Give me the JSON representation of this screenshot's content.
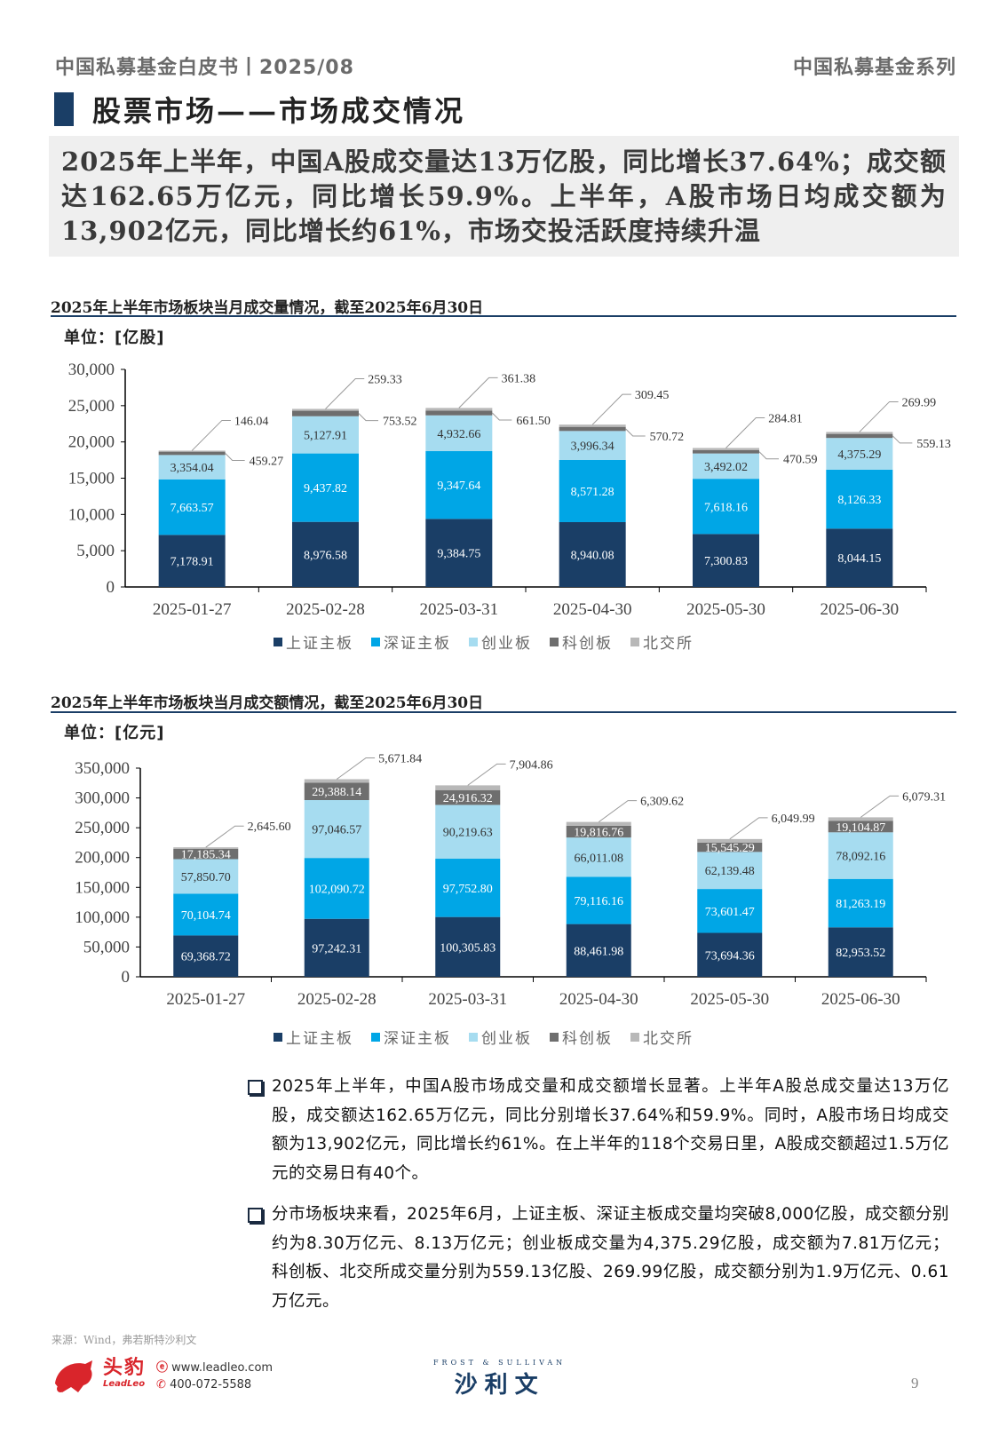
{
  "header": {
    "left": "中国私募基金白皮书丨2025/08",
    "right": "中国私募基金系列"
  },
  "page_title": "股票市场——市场成交情况",
  "summary": "2025年上半年，中国A股成交量达13万亿股，同比增长37.64%；成交额达162.65万亿元，同比增长59.9%。上半年，A股市场日均成交额为13,902亿元，同比增长约61%，市场交投活跃度持续升温",
  "colors": {
    "上证主板": "#1a3e66",
    "深证主板": "#00a6e6",
    "创业板": "#a6dcf0",
    "科创板": "#6e6e6e",
    "北交所": "#b8b8b8",
    "accent": "#1a3e66"
  },
  "chart_data": [
    {
      "type": "bar",
      "stacked": true,
      "title": "2025年上半年市场板块当月成交量情况，截至2025年6月30日",
      "unit": "单位：[亿股]",
      "categories": [
        "2025-01-27",
        "2025-02-28",
        "2025-03-31",
        "2025-04-30",
        "2025-05-30",
        "2025-06-30"
      ],
      "series": [
        {
          "name": "上证主板",
          "values": [
            7178.91,
            8976.58,
            9384.75,
            8940.08,
            7300.83,
            8044.15
          ],
          "labels": [
            "7,178.91",
            "8,976.58",
            "9,384.75",
            "8,940.08",
            "7,300.83",
            "8,044.15"
          ]
        },
        {
          "name": "深证主板",
          "values": [
            7663.57,
            9437.82,
            9347.64,
            8571.28,
            7618.16,
            8126.33
          ],
          "labels": [
            "7,663.57",
            "9,437.82",
            "9,347.64",
            "8,571.28",
            "7,618.16",
            "8,126.33"
          ]
        },
        {
          "name": "创业板",
          "values": [
            3354.04,
            5127.91,
            4932.66,
            3996.34,
            3492.02,
            4375.29
          ],
          "labels": [
            "3,354.04",
            "5,127.91",
            "4,932.66",
            "3,996.34",
            "3,492.02",
            "4,375.29"
          ]
        },
        {
          "name": "科创板",
          "values": [
            459.27,
            753.52,
            661.5,
            570.72,
            470.59,
            559.13
          ],
          "labels": [
            "459.27",
            "753.52",
            "661.50",
            "570.72",
            "470.59",
            "559.13"
          ]
        },
        {
          "name": "北交所",
          "values": [
            146.04,
            259.33,
            361.38,
            309.45,
            284.81,
            269.99
          ],
          "labels": [
            "146.04",
            "259.33",
            "361.38",
            "309.45",
            "284.81",
            "269.99"
          ]
        }
      ],
      "ylim": [
        0,
        30000
      ],
      "yticks": [
        "0",
        "5,000",
        "10,000",
        "15,000",
        "20,000",
        "25,000",
        "30,000"
      ],
      "grid": false,
      "legend": "bottom"
    },
    {
      "type": "bar",
      "stacked": true,
      "title": "2025年上半年市场板块当月成交额情况，截至2025年6月30日",
      "unit": "单位：[亿元]",
      "categories": [
        "2025-01-27",
        "2025-02-28",
        "2025-03-31",
        "2025-04-30",
        "2025-05-30",
        "2025-06-30"
      ],
      "series": [
        {
          "name": "上证主板",
          "values": [
            69368.72,
            97242.31,
            100305.83,
            88461.98,
            73694.36,
            82953.52
          ],
          "labels": [
            "69,368.72",
            "97,242.31",
            "100,305.83",
            "88,461.98",
            "73,694.36",
            "82,953.52"
          ]
        },
        {
          "name": "深证主板",
          "values": [
            70104.74,
            102090.72,
            97752.8,
            79116.16,
            73601.47,
            81263.19
          ],
          "labels": [
            "70,104.74",
            "102,090.72",
            "97,752.80",
            "79,116.16",
            "73,601.47",
            "81,263.19"
          ]
        },
        {
          "name": "创业板",
          "values": [
            57850.7,
            97046.57,
            90219.63,
            66011.08,
            62139.48,
            78092.16
          ],
          "labels": [
            "57,850.70",
            "97,046.57",
            "90,219.63",
            "66,011.08",
            "62,139.48",
            "78,092.16"
          ]
        },
        {
          "name": "科创板",
          "values": [
            17185.34,
            29388.14,
            24916.32,
            19816.76,
            15545.29,
            19104.87
          ],
          "labels": [
            "17,185.34",
            "29,388.14",
            "24,916.32",
            "19,816.76",
            "15,545.29",
            "19,104.87"
          ]
        },
        {
          "name": "北交所",
          "values": [
            2645.6,
            5671.84,
            7904.86,
            6309.62,
            6049.99,
            6079.31
          ],
          "labels": [
            "2,645.60",
            "5,671.84",
            "7,904.86",
            "6,309.62",
            "6,049.99",
            "6,079.31"
          ]
        }
      ],
      "ylim": [
        0,
        350000
      ],
      "yticks": [
        "0",
        "50,000",
        "100,000",
        "150,000",
        "200,000",
        "250,000",
        "300,000",
        "350,000"
      ],
      "grid": false,
      "legend": "bottom"
    }
  ],
  "bullets": [
    "2025年上半年，中国A股市场成交量和成交额增长显著。上半年A股总成交量达13万亿股，成交额达162.65万亿元，同比分别增长37.64%和59.9%。同时，A股市场日均成交额为13,902亿元，同比增长约61%。在上半年的118个交易日里，A股成交额超过1.5万亿元的交易日有40个。",
    "分市场板块来看，2025年6月，上证主板、深证主板成交量均突破8,000亿股，成交额分别约为8.30万亿元、8.13万亿元；创业板成交量为4,375.29亿股，成交额为7.81万亿元；科创板、北交所成交量分别为559.13亿股、269.99亿股，成交额分别为1.9万亿元、0.61万亿元。"
  ],
  "source": "来源：Wind，弗若斯特沙利文",
  "footer": {
    "leadleo_logo": "头豹 LeadLeo",
    "website": "www.leadleo.com",
    "phone": "400-072-5588",
    "fs_logo_top": "FROST & SULLIVAN",
    "fs_logo_cn": "沙利文",
    "page_number": "9"
  }
}
